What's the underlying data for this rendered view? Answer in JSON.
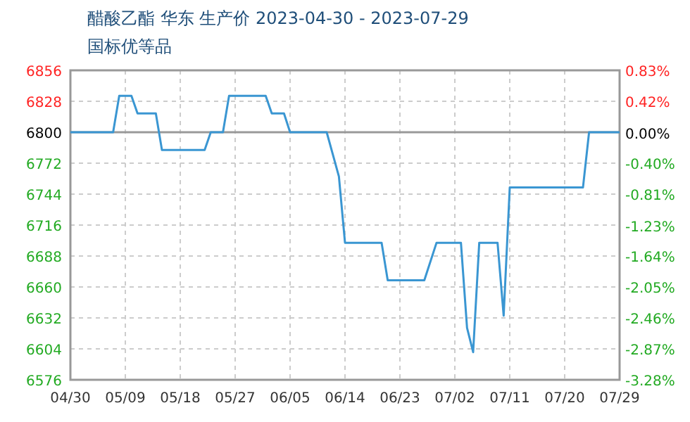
{
  "chart_data": {
    "type": "line",
    "title": "醋酸乙酯 华东 生产价 2023-04-30 - 2023-07-29",
    "subtitle": "国标优等品",
    "x": [
      "2023-04-30",
      "2023-05-07",
      "2023-05-08",
      "2023-05-10",
      "2023-05-11",
      "2023-05-14",
      "2023-05-15",
      "2023-05-22",
      "2023-05-23",
      "2023-05-25",
      "2023-05-26",
      "2023-06-01",
      "2023-06-02",
      "2023-06-04",
      "2023-06-05",
      "2023-06-11",
      "2023-06-12",
      "2023-06-13",
      "2023-06-14",
      "2023-06-20",
      "2023-06-21",
      "2023-06-27",
      "2023-06-29",
      "2023-07-03",
      "2023-07-04",
      "2023-07-05",
      "2023-07-06",
      "2023-07-09",
      "2023-07-10",
      "2023-07-11",
      "2023-07-23",
      "2023-07-24",
      "2023-07-29"
    ],
    "series": [
      {
        "color": "#3a96d2",
        "values": [
          6800,
          6800,
          6833,
          6833,
          6817,
          6817,
          6784,
          6784,
          6800,
          6800,
          6833,
          6833,
          6817,
          6817,
          6800,
          6800,
          6780,
          6760,
          6700,
          6700,
          6666,
          6666,
          6700,
          6700,
          6623,
          6601,
          6700,
          6700,
          6634,
          6750,
          6750,
          6800,
          6800
        ]
      }
    ],
    "xlim": [
      "2023-04-30",
      "2023-07-29"
    ],
    "xticks": [
      {
        "value": "2023-04-30",
        "label": "04/30"
      },
      {
        "value": "2023-05-09",
        "label": "05/09"
      },
      {
        "value": "2023-05-18",
        "label": "05/18"
      },
      {
        "value": "2023-05-27",
        "label": "05/27"
      },
      {
        "value": "2023-06-05",
        "label": "06/05"
      },
      {
        "value": "2023-06-14",
        "label": "06/14"
      },
      {
        "value": "2023-06-23",
        "label": "06/23"
      },
      {
        "value": "2023-07-02",
        "label": "07/02"
      },
      {
        "value": "2023-07-11",
        "label": "07/11"
      },
      {
        "value": "2023-07-20",
        "label": "07/20"
      },
      {
        "value": "2023-07-29",
        "label": "07/29"
      }
    ],
    "ylim": [
      6576,
      6856
    ],
    "yticks": [
      6576,
      6604,
      6632,
      6660,
      6688,
      6716,
      6744,
      6772,
      6800,
      6828,
      6856
    ],
    "y2lim": [
      -3.28,
      0.83
    ],
    "y2ticks": [
      {
        "value": -3.28,
        "label": "-3.28%"
      },
      {
        "value": -2.87,
        "label": "-2.87%"
      },
      {
        "value": -2.46,
        "label": "-2.46%"
      },
      {
        "value": -2.05,
        "label": "-2.05%"
      },
      {
        "value": -1.64,
        "label": "-1.64%"
      },
      {
        "value": -1.23,
        "label": "-1.23%"
      },
      {
        "value": -0.81,
        "label": "-0.81%"
      },
      {
        "value": -0.4,
        "label": "-0.40%"
      },
      {
        "value": 0,
        "label": "0.00%"
      },
      {
        "value": 0.42,
        "label": "0.42%"
      },
      {
        "value": 0.83,
        "label": "0.83%"
      }
    ],
    "ref_lines": [
      {
        "axis": "y",
        "value": 6800,
        "color": "#999999"
      }
    ],
    "grid": true,
    "marker": "none",
    "line_style": "solid"
  }
}
